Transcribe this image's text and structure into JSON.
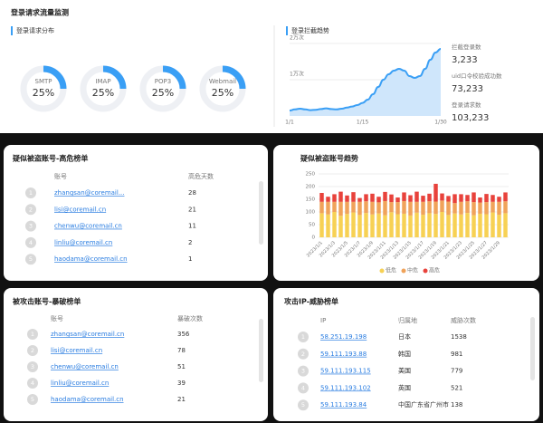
{
  "page": {
    "title": "登录请求流量监测"
  },
  "chart_data": [
    {
      "type": "donut",
      "title": "登录请求分布",
      "categories": [
        "SMTP",
        "IMAP",
        "POP3",
        "Webmail"
      ],
      "values": [
        25,
        25,
        25,
        25
      ],
      "value_labels": [
        "25%",
        "25%",
        "25%",
        "25%"
      ],
      "color": "#3a9ff5"
    },
    {
      "type": "line",
      "title": "登录拦截趋势",
      "categories": [
        "1/1",
        null,
        null,
        null,
        null,
        null,
        null,
        null,
        null,
        null,
        null,
        null,
        null,
        null,
        "1/15",
        null,
        null,
        null,
        null,
        null,
        null,
        null,
        null,
        null,
        null,
        null,
        null,
        null,
        null,
        "1/30"
      ],
      "values": [
        1500,
        1800,
        2000,
        1800,
        1600,
        1700,
        1900,
        2100,
        1900,
        1800,
        2000,
        2300,
        2600,
        3000,
        3600,
        4500,
        6000,
        8000,
        10000,
        11500,
        12500,
        13000,
        12500,
        11000,
        10500,
        11000,
        13000,
        15500,
        17500,
        18500
      ],
      "ylim": [
        0,
        20000
      ],
      "yticks": [
        {
          "value": 20000,
          "label": "2万次"
        },
        {
          "value": 10000,
          "label": "1万次"
        }
      ],
      "color": "#3a9ff5"
    },
    {
      "type": "bar",
      "stacked": true,
      "title": "疑似被盗账号趋势",
      "categories": [
        "2023/1/1",
        null,
        "2023/1/3",
        null,
        "2023/1/5",
        null,
        "2023/1/7",
        null,
        "2023/1/9",
        null,
        "2023/1/11",
        null,
        "2023/1/13",
        null,
        "2023/1/15",
        null,
        "2023/1/17",
        null,
        "2023/1/19",
        null,
        "2023/1/21",
        null,
        "2023/1/23",
        null,
        "2023/1/25",
        null,
        "2023/1/27",
        null,
        "2023/1/29",
        null
      ],
      "series": [
        {
          "name": "低危",
          "color": "#f7d154",
          "values": [
            95,
            90,
            100,
            85,
            92,
            98,
            88,
            96,
            90,
            94,
            87,
            99,
            91,
            93,
            86,
            97,
            89,
            95,
            92,
            100,
            88,
            94,
            90,
            96,
            87,
            93,
            91,
            98,
            89,
            95
          ]
        },
        {
          "name": "中危",
          "color": "#f0a35a",
          "values": [
            45,
            50,
            40,
            55,
            48,
            42,
            52,
            46,
            50,
            44,
            56,
            40,
            48,
            50,
            54,
            43,
            51,
            47,
            49,
            45,
            53,
            41,
            50,
            46,
            52,
            44,
            48,
            42,
            51,
            47
          ]
        },
        {
          "name": "高危",
          "color": "#e8423b",
          "values": [
            35,
            20,
            30,
            40,
            25,
            38,
            15,
            28,
            32,
            22,
            36,
            30,
            18,
            34,
            26,
            40,
            24,
            30,
            70,
            28,
            22,
            35,
            30,
            25,
            38,
            20,
            32,
            27,
            20,
            35
          ]
        }
      ],
      "ylim": [
        0,
        250
      ],
      "yticks": [
        0,
        50,
        100,
        150,
        200,
        250
      ],
      "grid": true,
      "legend": "bottom"
    }
  ],
  "stats": [
    {
      "label": "拦截登录数",
      "value": "3,233"
    },
    {
      "label": "uid口令校验成功数",
      "value": "73,233"
    },
    {
      "label": "登录请求数",
      "value": "103,233"
    }
  ],
  "tables": [
    {
      "title": "疑似被盗账号-高危榜单",
      "columns": [
        "账号",
        "高危天数"
      ],
      "rows": [
        [
          1,
          "zhangsan@coremail...",
          28
        ],
        [
          2,
          "lisi@coremail.cn",
          21
        ],
        [
          3,
          "chenwu@coremail.cn",
          11
        ],
        [
          4,
          "linliu@coremail.cn",
          2
        ],
        [
          5,
          "haodama@coremail.cn",
          1
        ]
      ]
    },
    {
      "title": "被攻击账号-暴破榜单",
      "columns": [
        "账号",
        "暴破次数"
      ],
      "rows": [
        [
          1,
          "zhangsan@coremail.cn",
          356
        ],
        [
          2,
          "lisi@coremail.cn",
          78
        ],
        [
          3,
          "chenwu@coremail.cn",
          51
        ],
        [
          4,
          "linliu@coremail.cn",
          39
        ],
        [
          5,
          "haodama@coremail.cn",
          21
        ]
      ]
    },
    {
      "title": "攻击IP-威胁榜单",
      "columns": [
        "IP",
        "归属地",
        "威胁次数"
      ],
      "rows": [
        [
          1,
          "58.251.19.198",
          "日本",
          1538
        ],
        [
          2,
          "59.111.193.88",
          "韩国",
          981
        ],
        [
          3,
          "59.111.193.115",
          "美国",
          779
        ],
        [
          4,
          "59.111.193.102",
          "英国",
          521
        ],
        [
          5,
          "59.111.193.84",
          "中国广东省广州市",
          138
        ]
      ]
    }
  ]
}
